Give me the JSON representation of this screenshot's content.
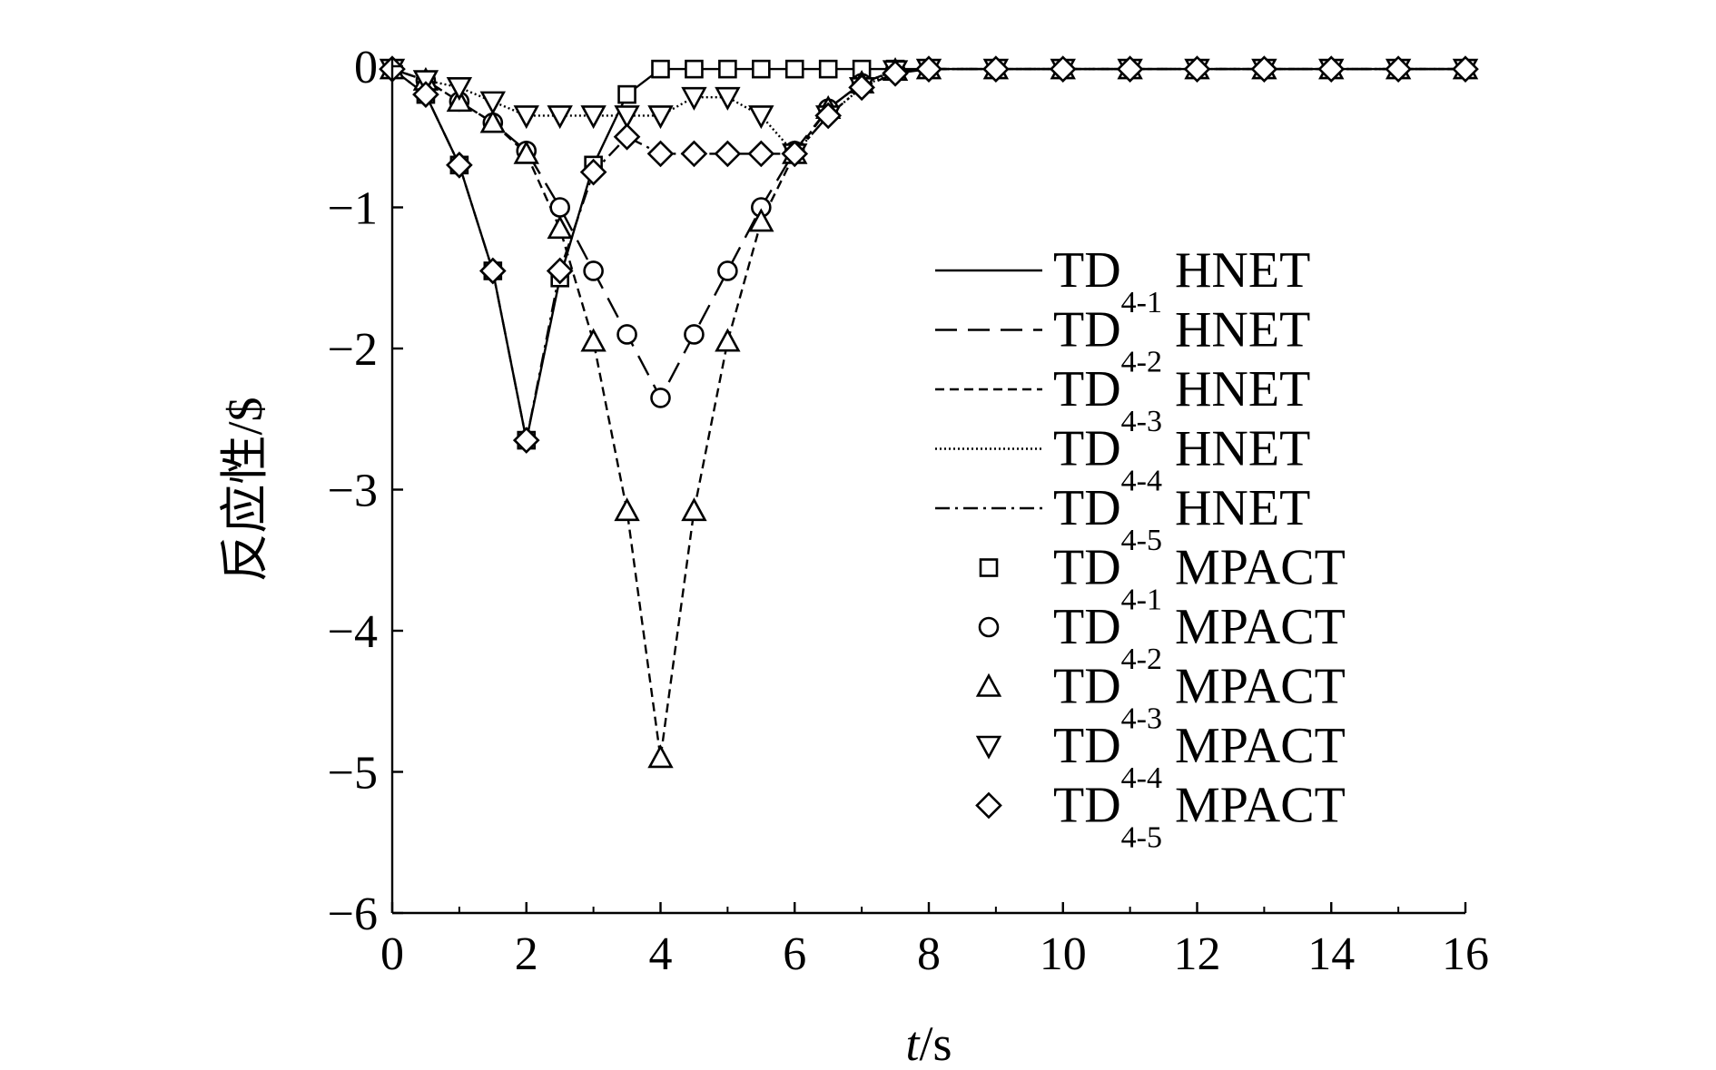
{
  "chart_data": {
    "type": "line",
    "xlabel": "t/s",
    "xlabel_italic": "t",
    "xlabel_rest": "/s",
    "ylabel": "反应性/$",
    "xlim": [
      0,
      16
    ],
    "ylim": [
      -6,
      0
    ],
    "xticks": [
      0,
      2,
      4,
      6,
      8,
      10,
      12,
      14,
      16
    ],
    "yticks": [
      0,
      -1,
      -2,
      -3,
      -4,
      -5,
      -6
    ],
    "ytick_labels": [
      "0",
      "−1",
      "−2",
      "−3",
      "−4",
      "−5",
      "−6"
    ],
    "grid": false,
    "legend_position": "right, inside plot",
    "x": [
      0,
      0.5,
      1,
      1.5,
      2,
      2.5,
      3,
      3.5,
      4,
      4.5,
      5,
      5.5,
      6,
      6.5,
      7,
      7.5,
      8,
      9,
      10,
      11,
      12,
      13,
      14,
      15,
      16
    ],
    "series": [
      {
        "base": "TD",
        "sub": "4-1",
        "code": "HNET",
        "style": "solid",
        "values": [
          -0.02,
          -0.2,
          -0.7,
          -1.45,
          -2.65,
          -1.5,
          -0.7,
          -0.2,
          -0.02,
          -0.02,
          -0.02,
          -0.02,
          -0.02,
          -0.02,
          -0.02,
          -0.02,
          -0.02,
          -0.02,
          -0.02,
          -0.02,
          -0.02,
          -0.02,
          -0.02,
          -0.02,
          -0.02
        ]
      },
      {
        "base": "TD",
        "sub": "4-2",
        "code": "HNET",
        "style": "longdash",
        "values": [
          -0.02,
          -0.1,
          -0.25,
          -0.4,
          -0.6,
          -1.0,
          -1.45,
          -1.9,
          -2.35,
          -1.9,
          -1.45,
          -1.0,
          -0.6,
          -0.3,
          -0.12,
          -0.03,
          -0.02,
          -0.02,
          -0.02,
          -0.02,
          -0.02,
          -0.02,
          -0.02,
          -0.02,
          -0.02
        ]
      },
      {
        "base": "TD",
        "sub": "4-3",
        "code": "HNET",
        "style": "shortdash",
        "values": [
          -0.02,
          -0.1,
          -0.25,
          -0.4,
          -0.62,
          -1.15,
          -1.95,
          -3.15,
          -4.9,
          -3.15,
          -1.95,
          -1.1,
          -0.62,
          -0.3,
          -0.12,
          -0.03,
          -0.02,
          -0.02,
          -0.02,
          -0.02,
          -0.02,
          -0.02,
          -0.02,
          -0.02,
          -0.02
        ]
      },
      {
        "base": "TD",
        "sub": "4-4",
        "code": "HNET",
        "style": "dotted",
        "values": [
          -0.02,
          -0.1,
          -0.15,
          -0.25,
          -0.35,
          -0.35,
          -0.35,
          -0.35,
          -0.35,
          -0.22,
          -0.22,
          -0.35,
          -0.62,
          -0.35,
          -0.15,
          -0.03,
          -0.02,
          -0.02,
          -0.02,
          -0.02,
          -0.02,
          -0.02,
          -0.02,
          -0.02,
          -0.02
        ]
      },
      {
        "base": "TD",
        "sub": "4-5",
        "code": "HNET",
        "style": "dashdot",
        "values": [
          -0.02,
          -0.2,
          -0.7,
          -1.45,
          -2.65,
          -1.45,
          -0.75,
          -0.5,
          -0.62,
          -0.62,
          -0.62,
          -0.62,
          -0.62,
          -0.35,
          -0.15,
          -0.05,
          -0.02,
          -0.02,
          -0.02,
          -0.02,
          -0.02,
          -0.02,
          -0.02,
          -0.02,
          -0.02
        ]
      },
      {
        "base": "TD",
        "sub": "4-1",
        "code": "MPACT",
        "marker": "square",
        "values": [
          -0.02,
          -0.2,
          -0.7,
          -1.45,
          -2.65,
          -1.5,
          -0.7,
          -0.2,
          -0.02,
          -0.02,
          -0.02,
          -0.02,
          -0.02,
          -0.02,
          -0.02,
          -0.02,
          -0.02,
          -0.02,
          -0.02,
          -0.02,
          -0.02,
          -0.02,
          -0.02,
          -0.02,
          -0.02
        ]
      },
      {
        "base": "TD",
        "sub": "4-2",
        "code": "MPACT",
        "marker": "circle",
        "values": [
          -0.02,
          -0.1,
          -0.25,
          -0.4,
          -0.6,
          -1.0,
          -1.45,
          -1.9,
          -2.35,
          -1.9,
          -1.45,
          -1.0,
          -0.6,
          -0.3,
          -0.12,
          -0.03,
          -0.02,
          -0.02,
          -0.02,
          -0.02,
          -0.02,
          -0.02,
          -0.02,
          -0.02,
          -0.02
        ]
      },
      {
        "base": "TD",
        "sub": "4-3",
        "code": "MPACT",
        "marker": "triangle-up",
        "values": [
          -0.02,
          -0.1,
          -0.25,
          -0.4,
          -0.62,
          -1.15,
          -1.95,
          -3.15,
          -4.9,
          -3.15,
          -1.95,
          -1.1,
          -0.62,
          -0.3,
          -0.12,
          -0.03,
          -0.02,
          -0.02,
          -0.02,
          -0.02,
          -0.02,
          -0.02,
          -0.02,
          -0.02,
          -0.02
        ]
      },
      {
        "base": "TD",
        "sub": "4-4",
        "code": "MPACT",
        "marker": "triangle-down",
        "values": [
          -0.02,
          -0.1,
          -0.15,
          -0.25,
          -0.35,
          -0.35,
          -0.35,
          -0.35,
          -0.35,
          -0.22,
          -0.22,
          -0.35,
          -0.62,
          -0.35,
          -0.15,
          -0.03,
          -0.02,
          -0.02,
          -0.02,
          -0.02,
          -0.02,
          -0.02,
          -0.02,
          -0.02,
          -0.02
        ]
      },
      {
        "base": "TD",
        "sub": "4-5",
        "code": "MPACT",
        "marker": "diamond",
        "values": [
          -0.02,
          -0.2,
          -0.7,
          -1.45,
          -2.65,
          -1.45,
          -0.75,
          -0.5,
          -0.62,
          -0.62,
          -0.62,
          -0.62,
          -0.62,
          -0.35,
          -0.15,
          -0.05,
          -0.02,
          -0.02,
          -0.02,
          -0.02,
          -0.02,
          -0.02,
          -0.02,
          -0.02,
          -0.02
        ]
      }
    ]
  }
}
